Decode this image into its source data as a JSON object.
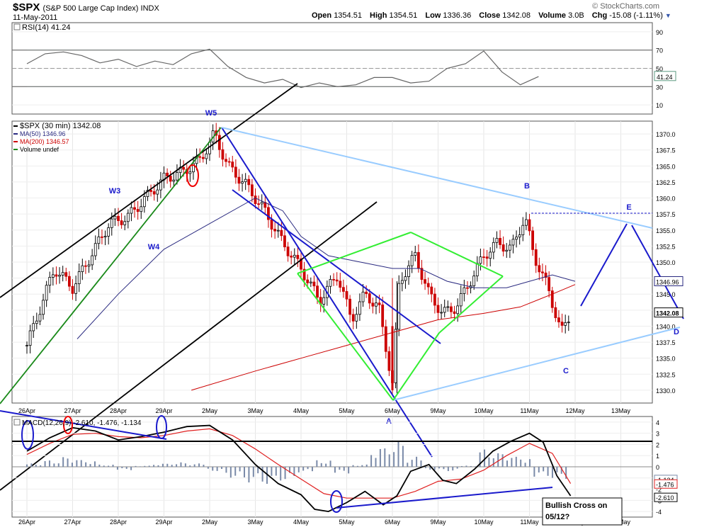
{
  "header": {
    "symbol": "$SPX",
    "description": "(S&P 500 Large Cap Index) INDX",
    "date": "11-May-2011",
    "brand": "© StockCharts.com",
    "open_label": "Open",
    "open": "1354.51",
    "high_label": "High",
    "high": "1354.51",
    "low_label": "Low",
    "low": "1336.36",
    "close_label": "Close",
    "close": "1342.08",
    "volume_label": "Volume",
    "volume": "3.0B",
    "chg_label": "Chg",
    "chg": "-15.08 (-1.11%)"
  },
  "chart_data": [
    {
      "type": "line",
      "panel": "rsi",
      "title": "RSI(14) 41.24",
      "current_value": "41.24",
      "yticks": [
        "90",
        "70",
        "50",
        "30",
        "10"
      ],
      "ylim": [
        0,
        100
      ],
      "levels": [
        70,
        50,
        30
      ],
      "series": [
        {
          "x_days": [
            0,
            0.4,
            0.8,
            1.2,
            1.6,
            2,
            2.4,
            2.8,
            3.2,
            3.6,
            4,
            4.4,
            4.8,
            5.2,
            5.6,
            6,
            6.4,
            6.8,
            7.2,
            7.6,
            8,
            8.4,
            8.8,
            9.2,
            9.6,
            10,
            10.4,
            10.8,
            11.2
          ],
          "values": [
            55,
            66,
            68,
            64,
            56,
            60,
            52,
            58,
            54,
            66,
            71,
            52,
            40,
            34,
            38,
            29,
            34,
            30,
            32,
            40,
            40,
            34,
            36,
            50,
            55,
            69,
            46,
            32,
            41
          ]
        }
      ]
    },
    {
      "type": "candlestick",
      "panel": "price",
      "legend": [
        "$SPX (30 min) 1342.08",
        "MA(50) 1346.96",
        "MA(200) 1346.57",
        "Volume undef"
      ],
      "yticks": [
        "1370.0",
        "1367.5",
        "1365.0",
        "1362.5",
        "1360.0",
        "1357.5",
        "1355.0",
        "1352.5",
        "1350.0",
        "1347.5",
        "1345.0",
        "1342.5",
        "1340.0",
        "1337.5",
        "1335.0",
        "1332.5",
        "1330.0"
      ],
      "ylim": [
        1328,
        1372
      ],
      "xticks": [
        "26Apr",
        "27Apr",
        "28Apr",
        "29Apr",
        "2May",
        "3May",
        "4May",
        "5May",
        "6May",
        "9May",
        "10May",
        "11May",
        "12May",
        "13May"
      ],
      "close_path": [
        [
          0,
          1337
        ],
        [
          0.3,
          1343
        ],
        [
          0.6,
          1349
        ],
        [
          1.0,
          1346
        ],
        [
          1.4,
          1351
        ],
        [
          1.8,
          1356
        ],
        [
          2.2,
          1357
        ],
        [
          2.6,
          1360
        ],
        [
          3.0,
          1363
        ],
        [
          3.4,
          1364
        ],
        [
          3.8,
          1366
        ],
        [
          4.1,
          1370
        ],
        [
          4.4,
          1365
        ],
        [
          4.8,
          1362
        ],
        [
          5.2,
          1358
        ],
        [
          5.6,
          1353
        ],
        [
          6.0,
          1349
        ],
        [
          6.4,
          1344
        ],
        [
          6.8,
          1348
        ],
        [
          7.1,
          1341
        ],
        [
          7.4,
          1345
        ],
        [
          7.7,
          1343
        ],
        [
          8.0,
          1331
        ],
        [
          8.15,
          1347
        ],
        [
          8.5,
          1351
        ],
        [
          8.8,
          1345
        ],
        [
          9.1,
          1342
        ],
        [
          9.4,
          1343
        ],
        [
          9.7,
          1347
        ],
        [
          10.0,
          1351
        ],
        [
          10.3,
          1353
        ],
        [
          10.6,
          1352
        ],
        [
          10.9,
          1357
        ],
        [
          11.1,
          1351
        ],
        [
          11.4,
          1346
        ],
        [
          11.7,
          1339
        ],
        [
          11.9,
          1342
        ]
      ],
      "ma50": [
        [
          1.1,
          1338
        ],
        [
          2.0,
          1345
        ],
        [
          3.0,
          1352
        ],
        [
          4.0,
          1356
        ],
        [
          5.0,
          1360
        ],
        [
          5.6,
          1358
        ],
        [
          6.0,
          1354
        ],
        [
          6.6,
          1351
        ],
        [
          7.3,
          1350
        ],
        [
          8.0,
          1349
        ],
        [
          8.6,
          1349
        ],
        [
          9.2,
          1347
        ],
        [
          9.8,
          1346
        ],
        [
          10.5,
          1346
        ],
        [
          11.0,
          1347
        ],
        [
          11.5,
          1348
        ],
        [
          12.0,
          1347
        ]
      ],
      "ma200": [
        [
          3.6,
          1330
        ],
        [
          5.0,
          1333
        ],
        [
          6.0,
          1335
        ],
        [
          7.0,
          1337
        ],
        [
          8.0,
          1339
        ],
        [
          9.0,
          1341
        ],
        [
          10.0,
          1342
        ],
        [
          10.8,
          1343
        ],
        [
          11.5,
          1345
        ],
        [
          12.0,
          1346.5
        ]
      ],
      "price_labels": [
        "1346.96",
        "1342.08"
      ],
      "wave_labels": [
        "W3",
        "W4",
        "W5",
        "A",
        "B",
        "C",
        "D",
        "E"
      ]
    },
    {
      "type": "line",
      "panel": "macd",
      "title": "MACD(12,26,9) -2.610, -1.476, -1.134",
      "yticks": [
        "4",
        "3",
        "2",
        "1",
        "0",
        "-1",
        "-2",
        "-3",
        "-4"
      ],
      "ylim": [
        -4.5,
        4.5
      ],
      "value_labels": [
        "-1.134",
        "-1.476",
        "-2.610"
      ],
      "macd": [
        [
          0,
          1.4
        ],
        [
          0.5,
          2.6
        ],
        [
          1.0,
          3.5
        ],
        [
          1.5,
          3.2
        ],
        [
          2.0,
          2.4
        ],
        [
          2.5,
          2.7
        ],
        [
          3.0,
          3.1
        ],
        [
          3.5,
          3.6
        ],
        [
          4.0,
          3.7
        ],
        [
          4.5,
          2.4
        ],
        [
          5.0,
          0.2
        ],
        [
          5.5,
          -1.5
        ],
        [
          6.0,
          -2.5
        ],
        [
          6.3,
          -3.8
        ],
        [
          6.6,
          -4.0
        ],
        [
          7.0,
          -3.2
        ],
        [
          7.4,
          -2.2
        ],
        [
          7.8,
          -3.4
        ],
        [
          8.1,
          -2.6
        ],
        [
          8.4,
          -0.4
        ],
        [
          8.8,
          0.2
        ],
        [
          9.1,
          -1.2
        ],
        [
          9.4,
          -1.5
        ],
        [
          9.8,
          -0.2
        ],
        [
          10.2,
          1.4
        ],
        [
          10.6,
          2.3
        ],
        [
          11.0,
          3.0
        ],
        [
          11.3,
          2.2
        ],
        [
          11.6,
          -0.8
        ],
        [
          11.9,
          -2.6
        ]
      ],
      "signal": [
        [
          0,
          1.1
        ],
        [
          0.5,
          2.1
        ],
        [
          1.0,
          2.9
        ],
        [
          1.5,
          3.0
        ],
        [
          2.0,
          2.7
        ],
        [
          2.5,
          2.6
        ],
        [
          3.0,
          2.8
        ],
        [
          3.5,
          3.2
        ],
        [
          4.0,
          3.4
        ],
        [
          4.5,
          2.8
        ],
        [
          5.0,
          1.6
        ],
        [
          5.5,
          0.2
        ],
        [
          6.0,
          -1.1
        ],
        [
          6.5,
          -2.4
        ],
        [
          7.0,
          -2.8
        ],
        [
          7.5,
          -2.8
        ],
        [
          8.0,
          -2.8
        ],
        [
          8.5,
          -2.2
        ],
        [
          9.0,
          -1.3
        ],
        [
          9.5,
          -1.1
        ],
        [
          10.0,
          -0.3
        ],
        [
          10.5,
          1.0
        ],
        [
          11.0,
          2.1
        ],
        [
          11.5,
          1.2
        ],
        [
          11.9,
          -1.5
        ]
      ],
      "histogram": [
        0.3,
        0.6,
        0.9,
        0.6,
        0.2,
        -0.3,
        0.1,
        0.3,
        0.4,
        0.3,
        -0.4,
        -1.0,
        -1.4,
        -1.6,
        -1.3,
        -0.5,
        0.6,
        -0.6,
        0.2,
        1.8,
        2.4,
        0.9,
        -0.3,
        -0.4,
        0.1,
        1.6,
        1.3,
        0.9,
        -0.9,
        -1.1
      ],
      "annotation": "Bullish Cross on 05/12?"
    }
  ]
}
